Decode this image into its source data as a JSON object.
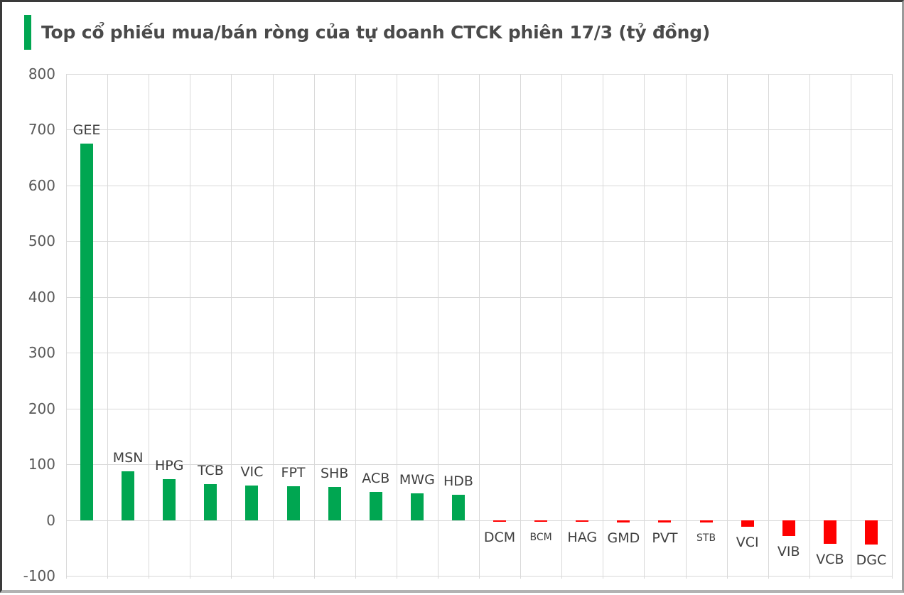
{
  "header": {
    "title": "Top cổ phiếu mua/bán ròng của tự doanh CTCK phiên 17/3 (tỷ đồng)",
    "accent_color": "#00A651"
  },
  "chart_data": {
    "type": "bar",
    "title": "Top cổ phiếu mua/bán ròng của tự doanh CTCK phiên 17/3 (tỷ đồng)",
    "categories": [
      "GEE",
      "MSN",
      "HPG",
      "TCB",
      "VIC",
      "FPT",
      "SHB",
      "ACB",
      "MWG",
      "HDB",
      "DCM",
      "BCM",
      "HAG",
      "GMD",
      "PVT",
      "STB",
      "VCI",
      "VIB",
      "VCB",
      "DGC"
    ],
    "values": [
      675,
      88,
      74,
      65,
      62,
      60,
      59,
      51,
      48,
      45,
      -3,
      -2,
      -3,
      -4,
      -5,
      -4,
      -12,
      -28,
      -43,
      -44
    ],
    "xlabel": "",
    "ylabel": "",
    "ylim": [
      -100,
      800
    ],
    "yticks": [
      800,
      700,
      600,
      500,
      400,
      300,
      200,
      100,
      0,
      -100
    ],
    "grid": true,
    "legend": false,
    "unit": "tỷ đồng",
    "positive_color": "#00A651",
    "negative_color": "#FE0000",
    "gridline_color": "#d9d9d9",
    "axis_label_color": "#595959",
    "category_label_color": "#3f3f3f",
    "small_font_labels": [
      "BCM",
      "STB"
    ]
  }
}
